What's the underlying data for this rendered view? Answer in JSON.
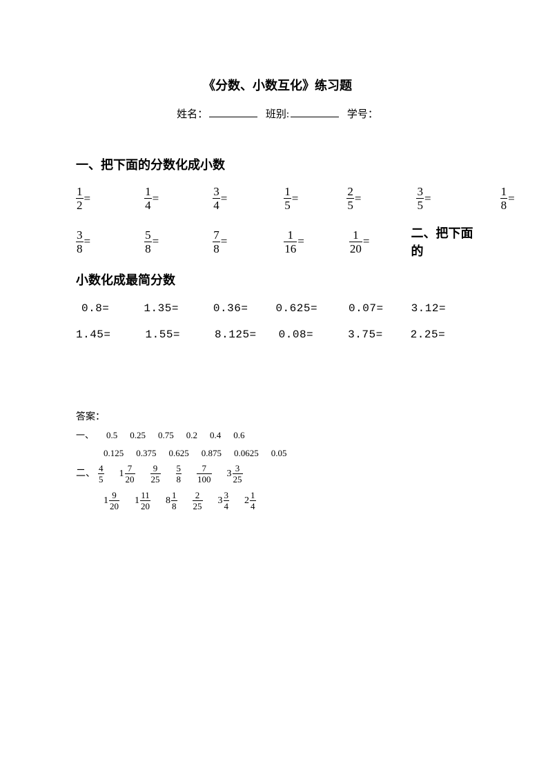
{
  "title": "《分数、小数互化》练习题",
  "info": {
    "name_label": "姓名：",
    "class_label": "班别:",
    "id_label": "学号："
  },
  "section1": {
    "heading": "一、把下面的分数化成小数",
    "row1": [
      {
        "n": "1",
        "d": "2"
      },
      {
        "n": "1",
        "d": "4"
      },
      {
        "n": "3",
        "d": "4"
      },
      {
        "n": "1",
        "d": "5"
      },
      {
        "n": "2",
        "d": "5"
      },
      {
        "n": "3",
        "d": "5"
      },
      {
        "n": "1",
        "d": "8"
      }
    ],
    "row1_gaps": [
      0,
      78,
      78,
      82,
      70,
      80,
      100
    ],
    "row2": [
      {
        "n": "3",
        "d": "8"
      },
      {
        "n": "5",
        "d": "8"
      },
      {
        "n": "7",
        "d": "8"
      },
      {
        "n": "1",
        "d": "16"
      },
      {
        "n": "1",
        "d": "20"
      }
    ],
    "row2_gaps": [
      0,
      78,
      78,
      82,
      65
    ]
  },
  "section2": {
    "heading_inline": "二、把下面的",
    "heading_cont": "小数化成最简分数",
    "row1": [
      "0.8=",
      "1.35=",
      "0.36=",
      "0.625=",
      "0.07=",
      "3.12="
    ],
    "row1_gaps": [
      8,
      50,
      50,
      40,
      45,
      40
    ],
    "row2": [
      "1.45=",
      "1.55=",
      "8.125=",
      "0.08=",
      "3.75=",
      "2.25="
    ],
    "row2_gaps": [
      0,
      50,
      50,
      32,
      50,
      40
    ]
  },
  "answers": {
    "label": "答案：",
    "part1_lead": "一、",
    "part1_row1": [
      "0.5",
      "0.25",
      "0.75",
      "0.2",
      "0.4",
      "0.6"
    ],
    "part1_row2": [
      "0.125",
      "0.375",
      "0.625",
      "0.875",
      "0.0625",
      "0.05"
    ],
    "part2_lead": "二、",
    "part2_row1": [
      {
        "w": "",
        "n": "4",
        "d": "5"
      },
      {
        "w": "1",
        "n": "7",
        "d": "20"
      },
      {
        "w": "",
        "n": "9",
        "d": "25"
      },
      {
        "w": "",
        "n": "5",
        "d": "8"
      },
      {
        "w": "",
        "n": "7",
        "d": "100"
      },
      {
        "w": "3",
        "n": "3",
        "d": "25"
      }
    ],
    "part2_row2": [
      {
        "w": "1",
        "n": "9",
        "d": "20"
      },
      {
        "w": "1",
        "n": "11",
        "d": "20"
      },
      {
        "w": "8",
        "n": "1",
        "d": "8"
      },
      {
        "w": "",
        "n": "2",
        "d": "25"
      },
      {
        "w": "3",
        "n": "3",
        "d": "4"
      },
      {
        "w": "2",
        "n": "1",
        "d": "4"
      }
    ]
  }
}
